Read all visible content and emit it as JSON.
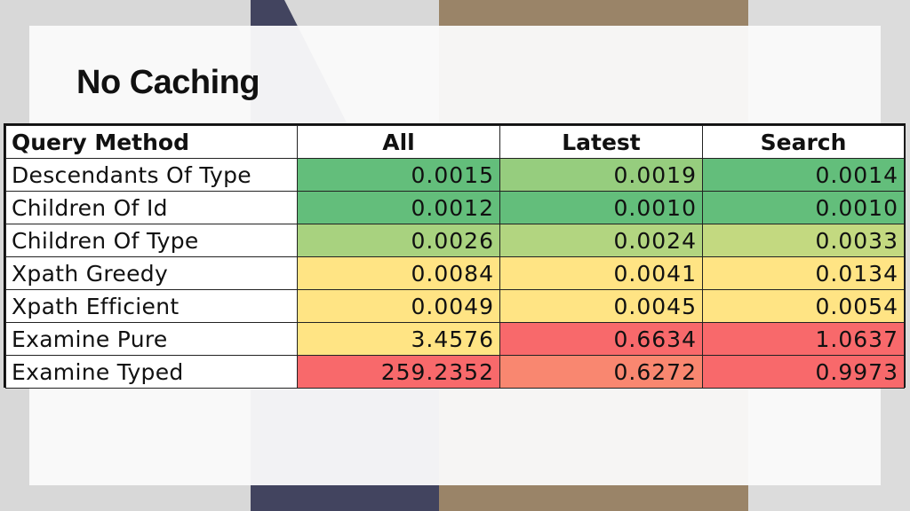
{
  "slide": {
    "title": "No Caching"
  },
  "colors": {
    "dark_green": "#63be7b",
    "mid_green": "#96cd7e",
    "light_green": "#b2d580",
    "yellow": "#ffe484",
    "light_red": "#f98770",
    "red": "#f8696b"
  },
  "chart_data": {
    "type": "table",
    "columns": [
      "Query Method",
      "All",
      "Latest",
      "Search"
    ],
    "rows": [
      {
        "label": "Descendants Of Type",
        "values": [
          "0.0015",
          "0.0019",
          "0.0014"
        ],
        "colors": [
          "#63be7b",
          "#96cd7e",
          "#63be7b"
        ]
      },
      {
        "label": "Children Of Id",
        "values": [
          "0.0012",
          "0.0010",
          "0.0010"
        ],
        "colors": [
          "#63be7b",
          "#63be7b",
          "#63be7b"
        ]
      },
      {
        "label": "Children Of Type",
        "values": [
          "0.0026",
          "0.0024",
          "0.0033"
        ],
        "colors": [
          "#a8d27f",
          "#b2d580",
          "#c3d980"
        ]
      },
      {
        "label": "Xpath Greedy",
        "values": [
          "0.0084",
          "0.0041",
          "0.0134"
        ],
        "colors": [
          "#ffe484",
          "#ffe484",
          "#ffe484"
        ]
      },
      {
        "label": "Xpath Efficient",
        "values": [
          "0.0049",
          "0.0045",
          "0.0054"
        ],
        "colors": [
          "#ffe484",
          "#ffe484",
          "#ffe484"
        ]
      },
      {
        "label": "Examine Pure",
        "values": [
          "3.4576",
          "0.6634",
          "1.0637"
        ],
        "colors": [
          "#ffe484",
          "#f8696b",
          "#f8696b"
        ]
      },
      {
        "label": "Examine Typed",
        "values": [
          "259.2352",
          "0.6272",
          "0.9973"
        ],
        "colors": [
          "#f8696b",
          "#f98770",
          "#f8696b"
        ]
      }
    ]
  }
}
